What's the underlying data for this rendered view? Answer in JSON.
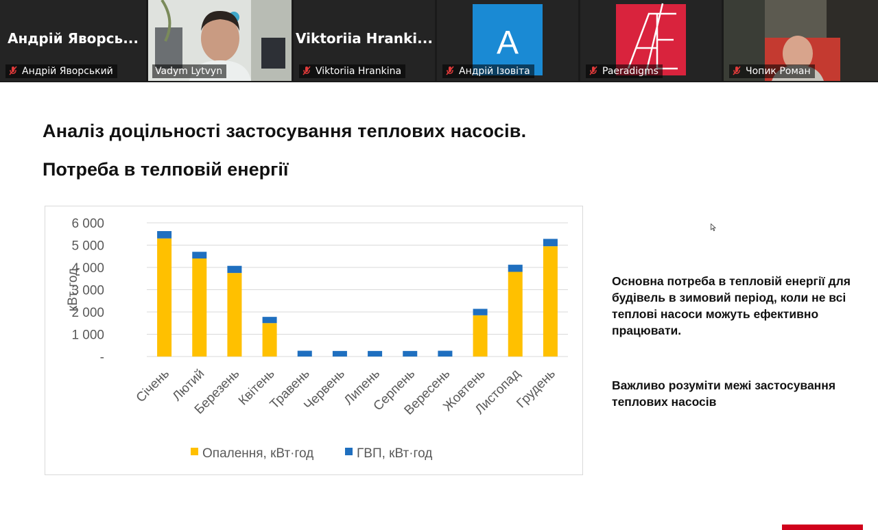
{
  "participants": [
    {
      "big_name": "Андрій Яворсь...",
      "label": "Андрій Яворський",
      "muted": true,
      "kind": "name"
    },
    {
      "big_name": "",
      "label": "Vadym Lytvyn",
      "muted": false,
      "kind": "video-person",
      "active": true
    },
    {
      "big_name": "Viktoriia Hranki...",
      "label": "Viktoriia Hrankina",
      "muted": true,
      "kind": "name"
    },
    {
      "big_name": "",
      "label": "Андрій Ізовіта",
      "muted": true,
      "kind": "avatar-a",
      "avatar_letter": "A"
    },
    {
      "big_name": "",
      "label": "Paeradigms",
      "muted": true,
      "kind": "avatar-ae"
    },
    {
      "big_name": "",
      "label": "Чопик Роман",
      "muted": true,
      "kind": "video-person2"
    }
  ],
  "slide": {
    "title": "Аналіз доцільності застосування теплових насосів.",
    "subtitle": "Потреба в телповій енергії",
    "note1": "Основна потреба в тепловій енергії для будівель в зимовий період, коли не всі теплові насоси можуть ефективно працювати.",
    "note2": "Важливо розуміти межі застосування теплових насосів"
  },
  "colors": {
    "heating": "#FFC000",
    "hot_water": "#1F6FBF",
    "muted_icon": "#e03a3a",
    "brand_red": "#d0021b"
  },
  "chart_data": {
    "type": "bar",
    "stacked": true,
    "ylabel": "кВт·год",
    "ylim": [
      0,
      6000
    ],
    "yticks": [
      "-",
      "1 000",
      "2 000",
      "3 000",
      "4 000",
      "5 000",
      "6 000"
    ],
    "grid": true,
    "legend_position": "bottom",
    "categories": [
      "Січень",
      "Лютий",
      "Березень",
      "Квітень",
      "Травень",
      "Червень",
      "Липень",
      "Серпень",
      "Вересень",
      "Жовтень",
      "Листопад",
      "Грудень"
    ],
    "series": [
      {
        "name": "Опалення, кВт·год",
        "color": "#FFC000",
        "values": [
          5300,
          4400,
          3750,
          1500,
          0,
          0,
          0,
          0,
          0,
          1850,
          3800,
          4950
        ]
      },
      {
        "name": "ГВП, кВт·год",
        "color": "#1F6FBF",
        "values": [
          330,
          300,
          320,
          280,
          260,
          250,
          250,
          250,
          260,
          290,
          320,
          330
        ]
      }
    ]
  }
}
